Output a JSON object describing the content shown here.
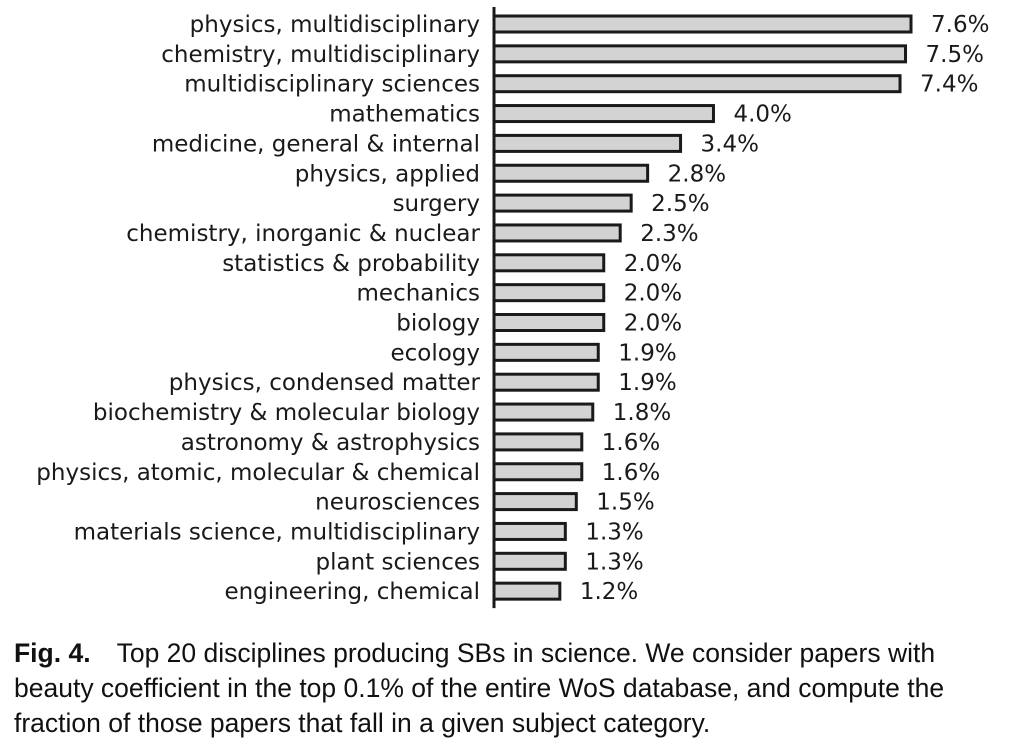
{
  "chart_data": {
    "type": "bar",
    "orientation": "horizontal",
    "categories": [
      "physics, multidisciplinary",
      "chemistry, multidisciplinary",
      "multidisciplinary sciences",
      "mathematics",
      "medicine, general & internal",
      "physics, applied",
      "surgery",
      "chemistry, inorganic & nuclear",
      "statistics & probability",
      "mechanics",
      "biology",
      "ecology",
      "physics, condensed matter",
      "biochemistry & molecular biology",
      "astronomy & astrophysics",
      "physics, atomic, molecular & chemical",
      "neurosciences",
      "materials science, multidisciplinary",
      "plant sciences",
      "engineering, chemical"
    ],
    "values": [
      7.6,
      7.5,
      7.4,
      4.0,
      3.4,
      2.8,
      2.5,
      2.3,
      2.0,
      2.0,
      2.0,
      1.9,
      1.9,
      1.8,
      1.6,
      1.6,
      1.5,
      1.3,
      1.3,
      1.2
    ],
    "value_labels": [
      "7.6%",
      "7.5%",
      "7.4%",
      "4.0%",
      "3.4%",
      "2.8%",
      "2.5%",
      "2.3%",
      "2.0%",
      "2.0%",
      "2.0%",
      "1.9%",
      "1.9%",
      "1.8%",
      "1.6%",
      "1.6%",
      "1.5%",
      "1.3%",
      "1.3%",
      "1.2%"
    ],
    "unit": "%",
    "bar_color": "#d3d3d3",
    "edge_color": "#1a1a1a",
    "xlim": [
      0,
      7.6
    ],
    "grid": false,
    "legend": "none"
  },
  "caption": {
    "label": "Fig. 4.",
    "text": "Top 20 disciplines producing SBs in science. We consider papers with beauty coefficient in the top 0.1% of the entire WoS database, and compute the fraction of those papers that fall in a given subject category."
  }
}
